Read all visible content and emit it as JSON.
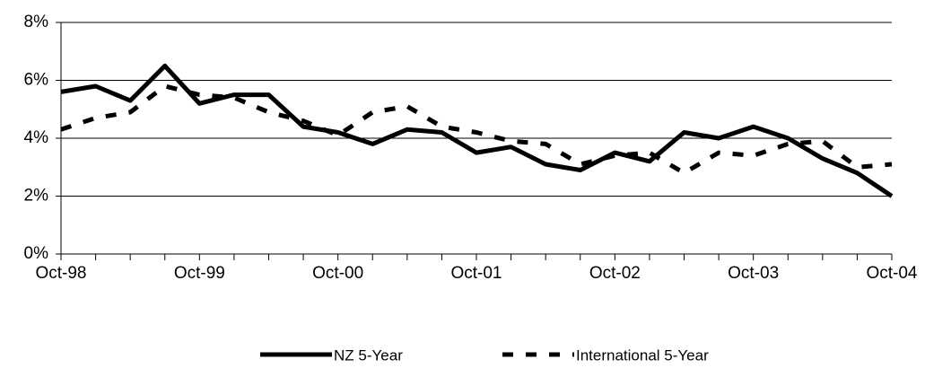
{
  "chart_data": {
    "type": "line",
    "categories": [
      "Oct-98",
      null,
      null,
      null,
      "Oct-99",
      null,
      null,
      null,
      "Oct-00",
      null,
      null,
      null,
      "Oct-01",
      null,
      null,
      null,
      "Oct-02",
      null,
      null,
      null,
      "Oct-03",
      null,
      null,
      null,
      "Oct-04"
    ],
    "series": [
      {
        "name": "NZ 5-Year",
        "color": "#000000",
        "dash": "solid",
        "values": [
          5.6,
          5.8,
          5.3,
          6.5,
          5.2,
          5.5,
          5.5,
          4.4,
          4.2,
          3.8,
          4.3,
          4.2,
          3.5,
          3.7,
          3.1,
          2.9,
          3.5,
          3.2,
          4.2,
          4.0,
          4.4,
          4.0,
          3.3,
          2.8,
          2.0
        ]
      },
      {
        "name": "International 5-Year",
        "color": "#000000",
        "dash": "dashed",
        "values": [
          4.3,
          4.7,
          4.9,
          5.8,
          5.5,
          5.4,
          4.9,
          4.6,
          4.1,
          4.9,
          5.1,
          4.4,
          4.2,
          3.9,
          3.8,
          3.1,
          3.4,
          3.5,
          2.8,
          3.5,
          3.4,
          3.8,
          3.9,
          3.0,
          3.1
        ]
      }
    ],
    "ylim": [
      0,
      8
    ],
    "yticks": [
      {
        "value": 0,
        "label": "0%"
      },
      {
        "value": 2,
        "label": "2%"
      },
      {
        "value": 4,
        "label": "4%"
      },
      {
        "value": 6,
        "label": "6%"
      },
      {
        "value": 8,
        "label": "8%"
      }
    ],
    "grid": true,
    "legend": "bottom"
  }
}
